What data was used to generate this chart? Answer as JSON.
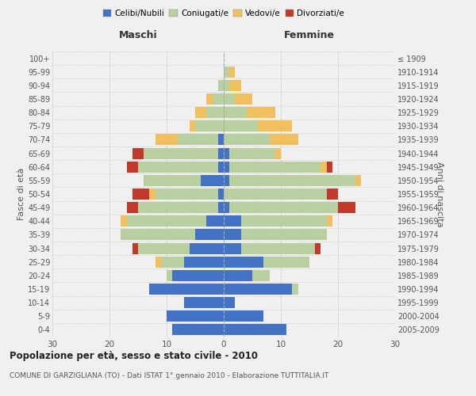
{
  "age_groups": [
    "0-4",
    "5-9",
    "10-14",
    "15-19",
    "20-24",
    "25-29",
    "30-34",
    "35-39",
    "40-44",
    "45-49",
    "50-54",
    "55-59",
    "60-64",
    "65-69",
    "70-74",
    "75-79",
    "80-84",
    "85-89",
    "90-94",
    "95-99",
    "100+"
  ],
  "birth_years": [
    "2005-2009",
    "2000-2004",
    "1995-1999",
    "1990-1994",
    "1985-1989",
    "1980-1984",
    "1975-1979",
    "1970-1974",
    "1965-1969",
    "1960-1964",
    "1955-1959",
    "1950-1954",
    "1945-1949",
    "1940-1944",
    "1935-1939",
    "1930-1934",
    "1925-1929",
    "1920-1924",
    "1915-1919",
    "1910-1914",
    "≤ 1909"
  ],
  "male": {
    "celibi": [
      9,
      10,
      7,
      13,
      9,
      7,
      6,
      5,
      3,
      1,
      1,
      4,
      1,
      1,
      1,
      0,
      0,
      0,
      0,
      0,
      0
    ],
    "coniugati": [
      0,
      0,
      0,
      0,
      1,
      4,
      9,
      13,
      14,
      14,
      11,
      10,
      14,
      13,
      7,
      5,
      3,
      2,
      1,
      0,
      0
    ],
    "vedovi": [
      0,
      0,
      0,
      0,
      0,
      1,
      0,
      0,
      1,
      0,
      1,
      0,
      0,
      0,
      4,
      1,
      2,
      1,
      0,
      0,
      0
    ],
    "divorziati": [
      0,
      0,
      0,
      0,
      0,
      0,
      1,
      0,
      0,
      2,
      3,
      0,
      2,
      2,
      0,
      0,
      0,
      0,
      0,
      0,
      0
    ]
  },
  "female": {
    "nubili": [
      11,
      7,
      2,
      12,
      5,
      7,
      3,
      3,
      3,
      1,
      0,
      1,
      1,
      1,
      0,
      0,
      0,
      0,
      0,
      0,
      0
    ],
    "coniugate": [
      0,
      0,
      0,
      1,
      3,
      8,
      13,
      15,
      15,
      19,
      18,
      22,
      16,
      8,
      8,
      6,
      4,
      2,
      1,
      1,
      0
    ],
    "vedove": [
      0,
      0,
      0,
      0,
      0,
      0,
      0,
      0,
      1,
      0,
      0,
      1,
      1,
      1,
      5,
      6,
      5,
      3,
      2,
      1,
      0
    ],
    "divorziate": [
      0,
      0,
      0,
      0,
      0,
      0,
      1,
      0,
      0,
      3,
      2,
      0,
      1,
      0,
      0,
      0,
      0,
      0,
      0,
      0,
      0
    ]
  },
  "colors": {
    "celibi_nubili": "#4472c4",
    "coniugati": "#b8cfa0",
    "vedovi": "#f0c060",
    "divorziati": "#c0392b"
  },
  "xlim": 30,
  "title": "Popolazione per età, sesso e stato civile - 2010",
  "subtitle": "COMUNE DI GARZIGLIANA (TO) - Dati ISTAT 1° gennaio 2010 - Elaborazione TUTTITALIA.IT",
  "ylabel_left": "Fasce di età",
  "ylabel_right": "Anni di nascita",
  "xlabel_left": "Maschi",
  "xlabel_right": "Femmine",
  "bg_color": "#f0f0f0",
  "plot_bg": "#f0f0f0"
}
